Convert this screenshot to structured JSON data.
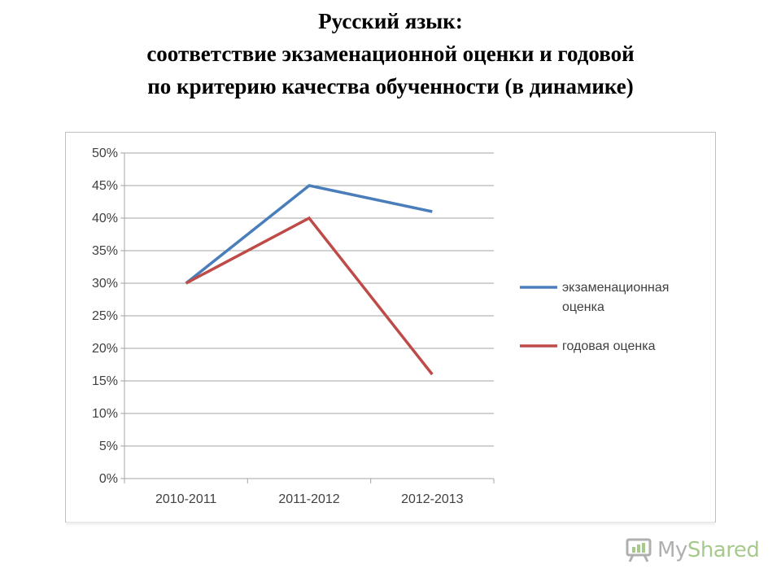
{
  "slide": {
    "title_lines": [
      "Русский язык:",
      "соответствие экзаменационной оценки и годовой",
      "по критерию качества обученности (в динамике)"
    ]
  },
  "chart_data": {
    "type": "line",
    "categories": [
      "2010-2011",
      "2011-2012",
      "2012-2013"
    ],
    "series": [
      {
        "name": "экзаменационная оценка",
        "values": [
          30,
          45,
          41
        ],
        "color": "#4a7ebb"
      },
      {
        "name": "годовая оценка",
        "values": [
          30,
          40,
          16
        ],
        "color": "#be4b48"
      }
    ],
    "ylim": [
      0,
      50
    ],
    "yticks": [
      "0%",
      "5%",
      "10%",
      "15%",
      "20%",
      "25%",
      "30%",
      "35%",
      "40%",
      "45%",
      "50%"
    ],
    "grid": true,
    "legend": "right"
  },
  "watermark": {
    "text_my": "My",
    "text_shared": "Shared",
    "icon": "presentation-board-icon"
  }
}
